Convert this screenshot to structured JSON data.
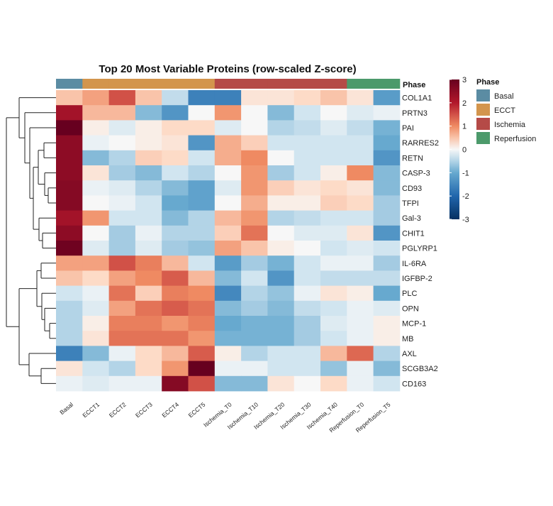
{
  "chart_data": {
    "type": "heatmap",
    "title": "Top 20 Most Variable Proteins (row-scaled Z-score)",
    "columns": [
      "Basal",
      "ECCT1",
      "ECCT2",
      "ECCT3",
      "ECCT4",
      "ECCT5",
      "Ischemia_T0",
      "Ischemia_T10",
      "Ischemia_T20",
      "Ischemia_T30",
      "Ischemia_T40",
      "Reperfusion_T0",
      "Reperfusion_T5"
    ],
    "column_phase": [
      "Basal",
      "ECCT",
      "ECCT",
      "ECCT",
      "ECCT",
      "ECCT",
      "Ischemia",
      "Ischemia",
      "Ischemia",
      "Ischemia",
      "Ischemia",
      "Reperfusion",
      "Reperfusion"
    ],
    "rows": [
      "COL1A1",
      "PRTN3",
      "PAI",
      "RARRES2",
      "RETN",
      "CASP-3",
      "CD93",
      "TFPI",
      "Gal-3",
      "CHIT1",
      "PGLYRP1",
      "IL-6RA",
      "IGFBP-2",
      "PLC",
      "OPN",
      "MCP-1",
      "MB",
      "AXL",
      "SCGB3A2",
      "CD163"
    ],
    "values": [
      [
        0.5,
        0.8,
        1.5,
        0.5,
        -0.4,
        -1.6,
        -1.6,
        0.2,
        0.2,
        0.3,
        0.5,
        0.2,
        -1.2
      ],
      [
        2.2,
        0.6,
        0.6,
        -0.8,
        -1.3,
        0.0,
        0.9,
        0.0,
        -0.8,
        -0.3,
        0.0,
        -0.2,
        -0.1
      ],
      [
        3.0,
        0.1,
        -0.2,
        0.1,
        0.3,
        0.3,
        -0.2,
        0.0,
        -0.5,
        -0.4,
        -0.2,
        -0.4,
        -0.9
      ],
      [
        2.5,
        -0.1,
        0.0,
        0.1,
        0.2,
        -1.3,
        0.7,
        0.4,
        -0.3,
        -0.3,
        -0.3,
        -0.3,
        -1.0
      ],
      [
        2.5,
        -0.8,
        -0.5,
        0.4,
        0.3,
        -0.3,
        0.7,
        1.0,
        0.0,
        -0.3,
        -0.3,
        -0.3,
        -1.3
      ],
      [
        2.5,
        0.2,
        -0.6,
        -0.8,
        -0.3,
        -0.5,
        0.0,
        0.9,
        -0.6,
        -0.3,
        0.1,
        1.0,
        -0.8
      ],
      [
        2.6,
        -0.1,
        -0.2,
        -0.5,
        -0.8,
        -1.1,
        -0.2,
        0.9,
        0.4,
        0.2,
        0.3,
        0.2,
        -0.8
      ],
      [
        2.6,
        0.0,
        -0.1,
        -0.3,
        -1.0,
        -1.1,
        0.0,
        0.7,
        0.1,
        0.1,
        0.4,
        0.3,
        -0.6
      ],
      [
        2.2,
        0.9,
        -0.3,
        -0.3,
        -0.8,
        -0.5,
        0.6,
        0.9,
        -0.5,
        -0.4,
        -0.3,
        -0.3,
        -0.6
      ],
      [
        2.5,
        0.0,
        -0.6,
        -0.1,
        -0.5,
        -0.5,
        0.4,
        1.2,
        0.0,
        -0.2,
        -0.2,
        0.2,
        -1.3
      ],
      [
        2.9,
        -0.2,
        -0.6,
        -0.2,
        -0.6,
        -0.7,
        0.8,
        0.5,
        0.1,
        0.0,
        -0.3,
        -0.2,
        -0.3
      ],
      [
        0.8,
        0.8,
        1.5,
        1.1,
        0.6,
        -0.3,
        -1.2,
        -0.6,
        -0.9,
        -0.3,
        -0.1,
        -0.1,
        -0.6
      ],
      [
        0.5,
        0.3,
        0.8,
        1.0,
        1.4,
        0.6,
        -0.8,
        -0.3,
        -1.3,
        -0.3,
        -0.4,
        -0.4,
        -0.4
      ],
      [
        -0.3,
        -0.1,
        1.2,
        0.4,
        1.1,
        1.0,
        -1.5,
        -0.5,
        -0.7,
        -0.1,
        0.2,
        0.1,
        -1.0
      ],
      [
        -0.5,
        -0.2,
        0.8,
        1.2,
        1.4,
        1.2,
        -0.8,
        -0.6,
        -0.8,
        -0.4,
        -0.3,
        -0.1,
        -0.2
      ],
      [
        -0.5,
        0.1,
        1.1,
        1.1,
        0.9,
        1.1,
        -1.0,
        -0.9,
        -0.9,
        -0.6,
        -0.2,
        -0.1,
        0.1
      ],
      [
        -0.5,
        0.2,
        1.2,
        1.2,
        1.2,
        0.9,
        -0.9,
        -0.9,
        -0.9,
        -0.6,
        -0.3,
        -0.1,
        0.1
      ],
      [
        -1.6,
        -0.8,
        -0.1,
        0.3,
        0.6,
        1.4,
        0.1,
        -0.5,
        -0.3,
        -0.3,
        0.6,
        1.3,
        -0.5
      ],
      [
        0.2,
        -0.3,
        -0.5,
        0.3,
        0.9,
        3.0,
        -0.1,
        -0.1,
        -0.3,
        -0.3,
        -0.7,
        -0.1,
        -0.8
      ],
      [
        -0.1,
        -0.2,
        -0.1,
        -0.1,
        2.6,
        1.5,
        -0.8,
        -0.8,
        0.2,
        0.0,
        0.3,
        -0.1,
        -0.3
      ]
    ],
    "annotation_label": "Phase",
    "colorbar": {
      "min": -3,
      "max": 3,
      "ticks": [
        "3",
        "2",
        "1",
        "0",
        "-1",
        "-2",
        "-3"
      ]
    },
    "legend": {
      "title": "Phase",
      "items": [
        {
          "label": "Basal",
          "color": "#5b8ca3"
        },
        {
          "label": "ECCT",
          "color": "#d3954d"
        },
        {
          "label": "Ischemia",
          "color": "#b54a47"
        },
        {
          "label": "Reperfusion",
          "color": "#4c9a6b"
        }
      ]
    }
  }
}
